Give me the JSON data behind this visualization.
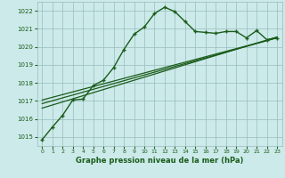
{
  "title": "Graphe pression niveau de la mer (hPa)",
  "background_color": "#cceaea",
  "plot_bg_color": "#cceaea",
  "grid_color": "#99bbbb",
  "line_color": "#1a5c1a",
  "xlim": [
    -0.5,
    23.5
  ],
  "ylim": [
    1014.5,
    1022.5
  ],
  "xticks": [
    0,
    1,
    2,
    3,
    4,
    5,
    6,
    7,
    8,
    9,
    10,
    11,
    12,
    13,
    14,
    15,
    16,
    17,
    18,
    19,
    20,
    21,
    22,
    23
  ],
  "yticks": [
    1015,
    1016,
    1017,
    1018,
    1019,
    1020,
    1021,
    1022
  ],
  "main_x": [
    0,
    1,
    2,
    3,
    4,
    5,
    6,
    7,
    8,
    9,
    10,
    11,
    12,
    13,
    14,
    15,
    16,
    17,
    18,
    19,
    20,
    21,
    22,
    23
  ],
  "main_y": [
    1014.85,
    1015.55,
    1016.2,
    1017.05,
    1017.1,
    1017.85,
    1018.15,
    1018.85,
    1019.85,
    1020.7,
    1021.1,
    1021.85,
    1022.2,
    1021.95,
    1021.4,
    1020.85,
    1020.8,
    1020.75,
    1020.85,
    1020.85,
    1020.5,
    1020.9,
    1020.4,
    1020.5
  ],
  "line2_x": [
    0,
    23
  ],
  "line2_y": [
    1016.6,
    1020.55
  ],
  "line3_x": [
    0,
    23
  ],
  "line3_y": [
    1016.85,
    1020.5
  ],
  "line4_x": [
    0,
    23
  ],
  "line4_y": [
    1017.05,
    1020.5
  ]
}
